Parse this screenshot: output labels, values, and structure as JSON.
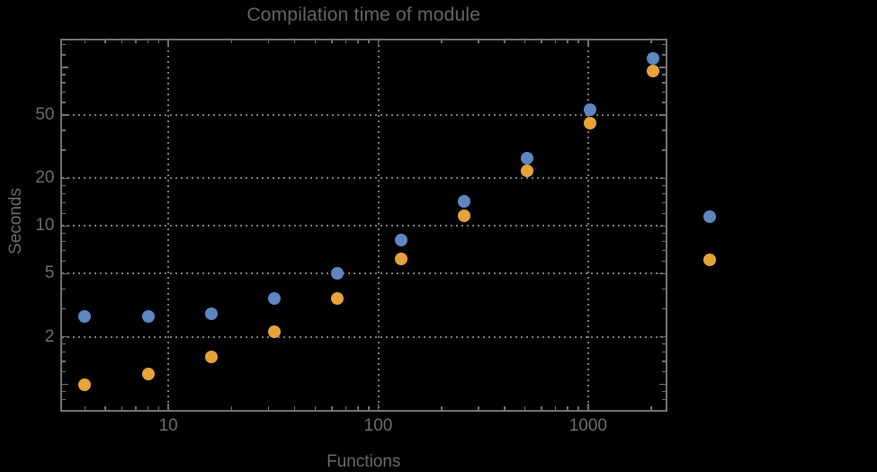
{
  "title": "Compilation time of module",
  "colors": {
    "background": "#000000",
    "frame": "#717171",
    "grid": "#7a7a7a",
    "text": "#6b6b6b",
    "series1": "#5e86c1",
    "series2": "#e7a33b"
  },
  "chart_data": {
    "type": "scatter",
    "title": "Compilation time of module",
    "xlabel": "Functions",
    "ylabel": "Seconds",
    "x_scale": "log",
    "y_scale": "log",
    "xlim": [
      3.1,
      2340
    ],
    "ylim": [
      0.69,
      150
    ],
    "grid": true,
    "x_tick_labels": [
      "10",
      "100",
      "1000"
    ],
    "x_tick_values": [
      10,
      100,
      1000
    ],
    "y_tick_labels": [
      "2",
      "5",
      "10",
      "20",
      "50"
    ],
    "y_tick_values": [
      2,
      5,
      10,
      20,
      50
    ],
    "x": [
      4,
      8,
      16,
      32,
      64,
      128,
      256,
      512,
      1024,
      2048
    ],
    "series": [
      {
        "name": "series-1-blue",
        "color": "#5e86c1",
        "values": [
          2.7,
          2.7,
          2.8,
          3.5,
          5.0,
          8.2,
          14.2,
          26.8,
          54,
          114
        ]
      },
      {
        "name": "series-2-orange",
        "color": "#e7a33b",
        "values": [
          1.0,
          1.17,
          1.5,
          2.15,
          3.5,
          6.2,
          11.6,
          22.2,
          44.5,
          94.5
        ]
      }
    ],
    "legend": {
      "position": "right-outside",
      "markers": [
        {
          "series": "series-1-blue",
          "color": "#5e86c1"
        },
        {
          "series": "series-2-orange",
          "color": "#e7a33b"
        }
      ]
    }
  }
}
